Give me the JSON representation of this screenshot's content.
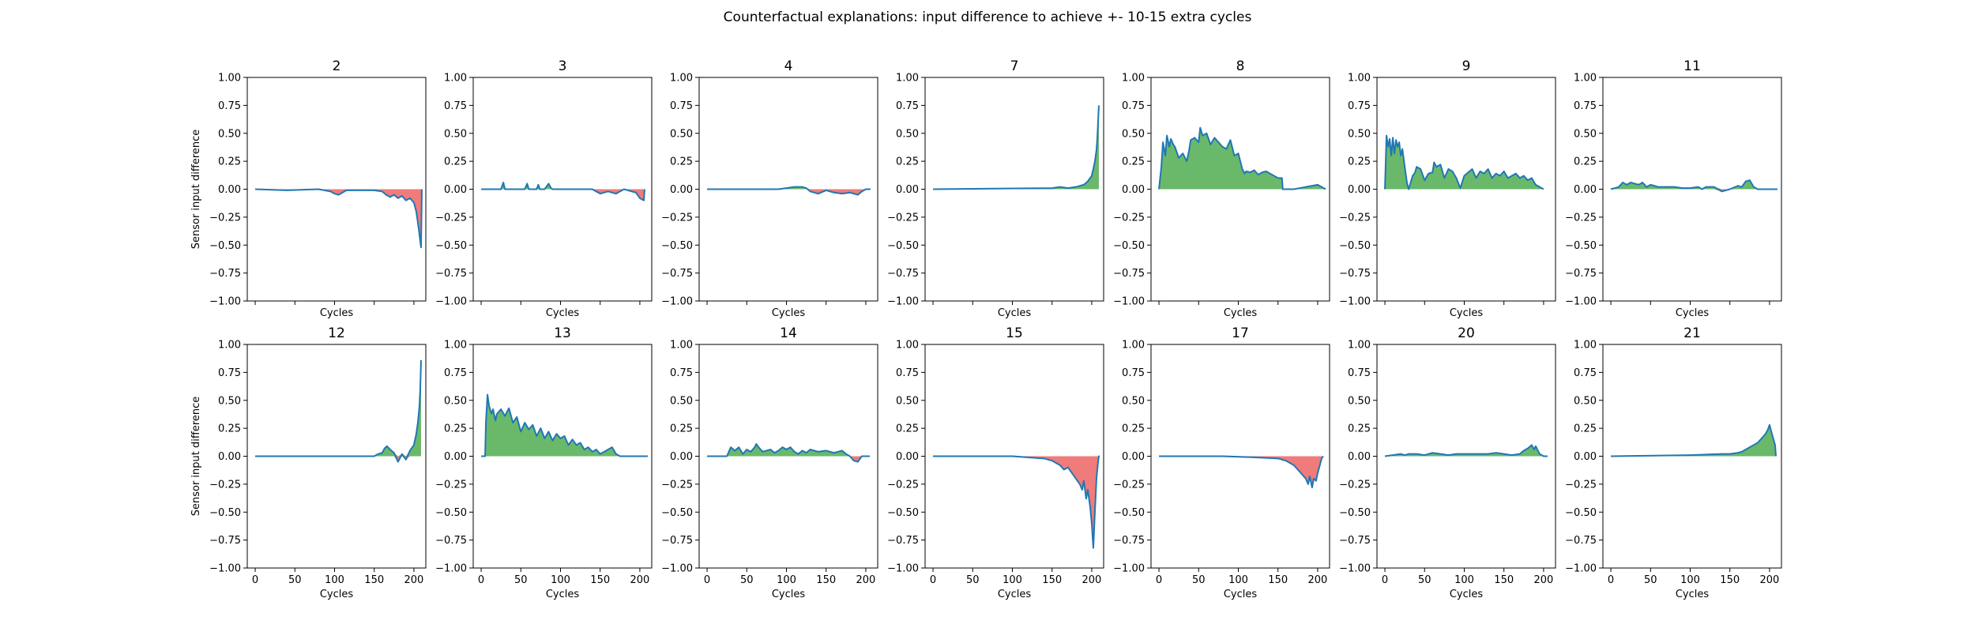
{
  "figure": {
    "title": "Counterfactual explanations: input difference to achieve +- 10-15 extra cycles"
  },
  "colors": {
    "line": "#1f77b4",
    "positive_fill": "#6ab96a",
    "negative_fill": "#f07b7b",
    "axis": "#000000"
  },
  "chart_data": {
    "type": "area",
    "layout": "2x7 small multiples, shared x and y axes",
    "xlabel": "Cycles",
    "ylabel": "Sensor input difference",
    "xlim": [
      -10,
      215
    ],
    "ylim": [
      -1.0,
      1.0
    ],
    "xticks": [
      0,
      50,
      100,
      150,
      200
    ],
    "yticks": [
      -1.0,
      -0.75,
      -0.5,
      -0.25,
      0.0,
      0.25,
      0.5,
      0.75,
      1.0
    ],
    "ytick_labels": [
      "−1.00",
      "−0.75",
      "−0.50",
      "−0.25",
      "0.00",
      "0.25",
      "0.50",
      "0.75",
      "1.00"
    ],
    "fill": "green above 0, red below 0",
    "panels": [
      {
        "title": "2",
        "x": [
          0,
          40,
          80,
          95,
          100,
          105,
          110,
          115,
          150,
          160,
          165,
          170,
          175,
          180,
          185,
          190,
          195,
          200,
          203,
          206,
          209,
          210
        ],
        "y": [
          0,
          -0.01,
          0,
          -0.02,
          -0.04,
          -0.05,
          -0.03,
          -0.01,
          -0.01,
          -0.02,
          -0.05,
          -0.07,
          -0.05,
          -0.08,
          -0.06,
          -0.1,
          -0.08,
          -0.12,
          -0.2,
          -0.35,
          -0.52,
          0
        ]
      },
      {
        "title": "3",
        "x": [
          0,
          25,
          28,
          30,
          55,
          58,
          60,
          70,
          72,
          74,
          80,
          85,
          88,
          90,
          140,
          145,
          150,
          160,
          170,
          180,
          195,
          200,
          205,
          206
        ],
        "y": [
          0,
          0,
          0.06,
          0,
          0,
          0.05,
          0,
          0,
          0.04,
          0,
          0,
          0.05,
          0.01,
          0,
          0,
          -0.02,
          -0.04,
          -0.02,
          -0.04,
          0,
          -0.03,
          -0.08,
          -0.1,
          0
        ]
      },
      {
        "title": "4",
        "x": [
          0,
          90,
          100,
          110,
          120,
          125,
          130,
          140,
          150,
          160,
          170,
          180,
          190,
          195,
          200,
          205,
          206
        ],
        "y": [
          0,
          0,
          0.01,
          0.02,
          0.02,
          0.01,
          -0.02,
          -0.04,
          -0.01,
          -0.03,
          -0.04,
          -0.03,
          -0.05,
          -0.02,
          0,
          0,
          0
        ]
      },
      {
        "title": "7",
        "x": [
          0,
          150,
          160,
          170,
          180,
          190,
          195,
          198,
          200,
          202,
          204,
          206,
          207,
          208,
          209
        ],
        "y": [
          0,
          0.01,
          0.02,
          0.01,
          0.02,
          0.04,
          0.07,
          0.1,
          0.12,
          0.18,
          0.25,
          0.35,
          0.45,
          0.6,
          0.75
        ]
      },
      {
        "title": "8",
        "x": [
          0,
          3,
          5,
          8,
          10,
          13,
          15,
          18,
          20,
          25,
          30,
          35,
          38,
          40,
          45,
          50,
          52,
          55,
          60,
          65,
          70,
          75,
          80,
          85,
          90,
          95,
          100,
          105,
          108,
          110,
          115,
          120,
          125,
          130,
          135,
          140,
          150,
          155,
          156,
          170,
          200,
          210
        ],
        "y": [
          0,
          0.2,
          0.42,
          0.3,
          0.48,
          0.38,
          0.45,
          0.4,
          0.38,
          0.28,
          0.32,
          0.25,
          0.35,
          0.44,
          0.46,
          0.42,
          0.55,
          0.48,
          0.5,
          0.4,
          0.46,
          0.42,
          0.38,
          0.36,
          0.44,
          0.3,
          0.32,
          0.18,
          0.14,
          0.16,
          0.15,
          0.17,
          0.13,
          0.15,
          0.16,
          0.14,
          0.1,
          0.1,
          0,
          0,
          0.04,
          0
        ]
      },
      {
        "title": "9",
        "x": [
          0,
          2,
          4,
          6,
          8,
          10,
          12,
          14,
          16,
          18,
          20,
          22,
          25,
          28,
          30,
          35,
          38,
          40,
          45,
          50,
          55,
          60,
          62,
          65,
          70,
          75,
          80,
          85,
          90,
          95,
          100,
          105,
          110,
          115,
          120,
          125,
          130,
          135,
          140,
          145,
          150,
          155,
          160,
          165,
          170,
          175,
          180,
          185,
          190,
          195,
          200
        ],
        "y": [
          0,
          0.48,
          0.38,
          0.45,
          0.3,
          0.46,
          0.32,
          0.44,
          0.38,
          0.42,
          0.3,
          0.36,
          0.2,
          0.05,
          0,
          0.12,
          0.15,
          0.2,
          0.18,
          0.08,
          0.14,
          0.15,
          0.24,
          0.2,
          0.22,
          0.1,
          0.18,
          0.16,
          0.1,
          0.01,
          0.12,
          0.15,
          0.18,
          0.1,
          0.16,
          0.14,
          0.18,
          0.1,
          0.14,
          0.12,
          0.16,
          0.1,
          0.12,
          0.14,
          0.1,
          0.12,
          0.08,
          0.1,
          0.04,
          0.02,
          0.0
        ]
      },
      {
        "title": "11",
        "x": [
          0,
          10,
          15,
          20,
          25,
          30,
          35,
          40,
          45,
          50,
          55,
          60,
          70,
          80,
          90,
          100,
          110,
          115,
          120,
          130,
          140,
          150,
          160,
          165,
          170,
          175,
          180,
          185,
          190,
          200,
          210
        ],
        "y": [
          0,
          0.02,
          0.06,
          0.04,
          0.06,
          0.05,
          0.04,
          0.06,
          0.02,
          0.04,
          0.03,
          0.02,
          0.02,
          0.02,
          0.01,
          0.01,
          0.02,
          0,
          0.02,
          0.02,
          -0.02,
          0,
          0.03,
          0.02,
          0.07,
          0.08,
          0.02,
          0,
          0,
          0,
          0
        ]
      },
      {
        "title": "12",
        "x": [
          0,
          150,
          155,
          160,
          163,
          166,
          170,
          175,
          180,
          185,
          190,
          195,
          200,
          203,
          205,
          207,
          208,
          209
        ],
        "y": [
          0,
          0,
          0.02,
          0.03,
          0.07,
          0.09,
          0.06,
          0.03,
          -0.05,
          0.02,
          -0.03,
          0.05,
          0.1,
          0.2,
          0.3,
          0.45,
          0.6,
          0.86
        ]
      },
      {
        "title": "13",
        "x": [
          0,
          5,
          6,
          8,
          10,
          13,
          15,
          18,
          20,
          25,
          30,
          35,
          40,
          45,
          50,
          55,
          60,
          65,
          70,
          75,
          80,
          85,
          90,
          95,
          100,
          105,
          110,
          115,
          120,
          125,
          130,
          135,
          140,
          145,
          150,
          155,
          160,
          165,
          170,
          175,
          210
        ],
        "y": [
          0,
          0,
          0.3,
          0.55,
          0.45,
          0.38,
          0.42,
          0.32,
          0.38,
          0.42,
          0.36,
          0.43,
          0.3,
          0.35,
          0.22,
          0.3,
          0.24,
          0.28,
          0.18,
          0.25,
          0.16,
          0.22,
          0.14,
          0.2,
          0.16,
          0.18,
          0.1,
          0.15,
          0.1,
          0.12,
          0.06,
          0.08,
          0.04,
          0.06,
          0.02,
          0.04,
          0.06,
          0.08,
          0.02,
          0,
          0
        ]
      },
      {
        "title": "14",
        "x": [
          0,
          25,
          28,
          30,
          35,
          40,
          45,
          50,
          55,
          60,
          62,
          65,
          70,
          75,
          80,
          85,
          90,
          95,
          100,
          105,
          110,
          115,
          120,
          125,
          130,
          140,
          150,
          160,
          170,
          175,
          180,
          185,
          190,
          195,
          205
        ],
        "y": [
          0,
          0,
          0.05,
          0.08,
          0.05,
          0.08,
          0.02,
          0.06,
          0.04,
          0.08,
          0.11,
          0.08,
          0.04,
          0.05,
          0.06,
          0.03,
          0.05,
          0.08,
          0.06,
          0.08,
          0.04,
          0.02,
          0.05,
          0.03,
          0.06,
          0.04,
          0.05,
          0.03,
          0.05,
          0.02,
          0,
          -0.04,
          -0.05,
          0,
          0
        ]
      },
      {
        "title": "15",
        "x": [
          0,
          100,
          140,
          150,
          160,
          165,
          170,
          175,
          180,
          185,
          188,
          190,
          193,
          195,
          198,
          200,
          202,
          204,
          206,
          208,
          209,
          210
        ],
        "y": [
          0,
          0,
          -0.02,
          -0.04,
          -0.08,
          -0.12,
          -0.1,
          -0.15,
          -0.2,
          -0.25,
          -0.3,
          -0.22,
          -0.38,
          -0.3,
          -0.45,
          -0.6,
          -0.82,
          -0.5,
          -0.2,
          -0.05,
          0,
          0
        ]
      },
      {
        "title": "17",
        "x": [
          0,
          80,
          120,
          150,
          160,
          165,
          170,
          175,
          180,
          185,
          188,
          190,
          193,
          195,
          198,
          200,
          202,
          205,
          207
        ],
        "y": [
          0,
          0,
          -0.01,
          -0.02,
          -0.04,
          -0.06,
          -0.08,
          -0.12,
          -0.16,
          -0.2,
          -0.25,
          -0.18,
          -0.28,
          -0.2,
          -0.22,
          -0.15,
          -0.1,
          -0.02,
          0
        ]
      },
      {
        "title": "20",
        "x": [
          0,
          10,
          20,
          25,
          30,
          40,
          50,
          60,
          70,
          80,
          90,
          100,
          130,
          140,
          150,
          160,
          170,
          175,
          180,
          185,
          188,
          190,
          195,
          200,
          205
        ],
        "y": [
          0,
          0.01,
          0.02,
          0.01,
          0.02,
          0.02,
          0.01,
          0.03,
          0.02,
          0.01,
          0.02,
          0.02,
          0.02,
          0.03,
          0.02,
          0.01,
          0.02,
          0.05,
          0.07,
          0.1,
          0.06,
          0.09,
          0.02,
          0,
          0
        ]
      },
      {
        "title": "21",
        "x": [
          0,
          100,
          140,
          150,
          160,
          165,
          170,
          175,
          180,
          185,
          190,
          195,
          198,
          200,
          203,
          205,
          207,
          208
        ],
        "y": [
          0,
          0.01,
          0.02,
          0.02,
          0.03,
          0.04,
          0.06,
          0.08,
          0.1,
          0.12,
          0.16,
          0.2,
          0.24,
          0.28,
          0.2,
          0.15,
          0.1,
          0
        ]
      }
    ]
  }
}
